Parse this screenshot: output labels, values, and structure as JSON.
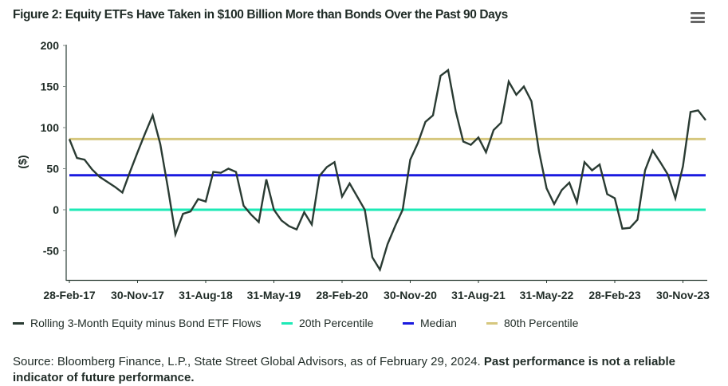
{
  "title": "Figure 2: Equity ETFs Have Taken in $100 Billion More than Bonds Over the Past 90 Days",
  "menu_icon": "hamburger-menu-icon",
  "footnote": {
    "source": "Source: Bloomberg Finance, L.P., State Street Global Advisors, as of February 29, 2024. ",
    "disclaimer": "Past performance is not a reliable indicator of future performance."
  },
  "chart_data": {
    "type": "line",
    "title": "Figure 2: Equity ETFs Have Taken in $100 Billion More than Bonds Over the Past 90 Days",
    "xlabel": "",
    "ylabel": "($)",
    "ylim": [
      -85,
      200
    ],
    "yticks": [
      200,
      150,
      100,
      50,
      0,
      -50
    ],
    "ytick_labels": [
      "200",
      "150",
      "100",
      "50",
      "0",
      "-50"
    ],
    "x_tick_labels": [
      "28-Feb-17",
      "30-Nov-17",
      "31-Aug-18",
      "31-May-19",
      "28-Feb-20",
      "30-Nov-20",
      "31-Aug-21",
      "31-May-22",
      "28-Feb-23",
      "30-Nov-23"
    ],
    "x_tick_month_index": [
      0,
      9,
      18,
      27,
      36,
      45,
      54,
      63,
      72,
      81
    ],
    "x_range_months": [
      0,
      84
    ],
    "grid": false,
    "legend_position": "bottom",
    "series": [
      {
        "name": "Rolling 3-Month Equity minus Bond ETF Flows",
        "color": "#2a3b33",
        "values": [
          86,
          63,
          61,
          49,
          40,
          34,
          28,
          21,
          46,
          70,
          93,
          115,
          80,
          27,
          -30,
          -5,
          -2,
          13,
          10,
          46,
          45,
          50,
          46,
          5,
          -6,
          -15,
          37,
          0,
          -13,
          -20,
          -24,
          -3,
          -18,
          41,
          52,
          58,
          16,
          32,
          16,
          0,
          -58,
          -73,
          -42,
          -20,
          0,
          61,
          81,
          107,
          115,
          163,
          170,
          120,
          83,
          79,
          88,
          70,
          97,
          106,
          156,
          140,
          150,
          132,
          71,
          26,
          7,
          24,
          33,
          9,
          58,
          48,
          55,
          19,
          14,
          -23,
          -22,
          -12,
          48,
          72,
          58,
          43,
          14,
          53,
          119,
          121,
          109
        ]
      },
      {
        "name": "20th Percentile",
        "color": "#1de9b6",
        "value": 0
      },
      {
        "name": "Median",
        "color": "#1a1adf",
        "value": 42
      },
      {
        "name": "80th Percentile",
        "color": "#d6c77e",
        "value": 86
      }
    ]
  }
}
